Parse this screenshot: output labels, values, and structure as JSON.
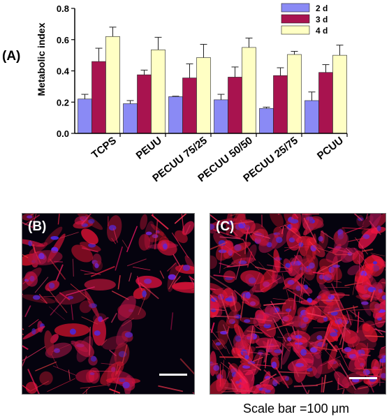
{
  "chart_data": {
    "type": "bar",
    "panel_label": "(A)",
    "ylabel": "Metabolic index",
    "ylim": [
      0,
      0.8
    ],
    "yticks": [
      "0.0",
      "0.2",
      "0.4",
      "0.6",
      "0.8"
    ],
    "categories": [
      "TCPS",
      "PEUU",
      "PECUU 75/25",
      "PECUU 50/50",
      "PECUU 25/75",
      "PCUU"
    ],
    "series": [
      {
        "name": "2 d",
        "color": "#8a8af5",
        "values": [
          0.22,
          0.19,
          0.235,
          0.215,
          0.16,
          0.21
        ],
        "errors": [
          0.03,
          0.02,
          0.003,
          0.035,
          0.008,
          0.055
        ]
      },
      {
        "name": "3 d",
        "color": "#a8134f",
        "values": [
          0.46,
          0.375,
          0.355,
          0.36,
          0.37,
          0.39
        ],
        "errors": [
          0.085,
          0.03,
          0.09,
          0.065,
          0.05,
          0.05
        ]
      },
      {
        "name": "4 d",
        "color": "#ffffc4",
        "values": [
          0.62,
          0.535,
          0.485,
          0.55,
          0.505,
          0.5
        ],
        "errors": [
          0.06,
          0.08,
          0.085,
          0.06,
          0.02,
          0.065
        ]
      }
    ],
    "legend_position": "top-right"
  },
  "images": {
    "b_label": "(B)",
    "c_label": "(C)"
  },
  "caption": "Scale bar =100 μm"
}
